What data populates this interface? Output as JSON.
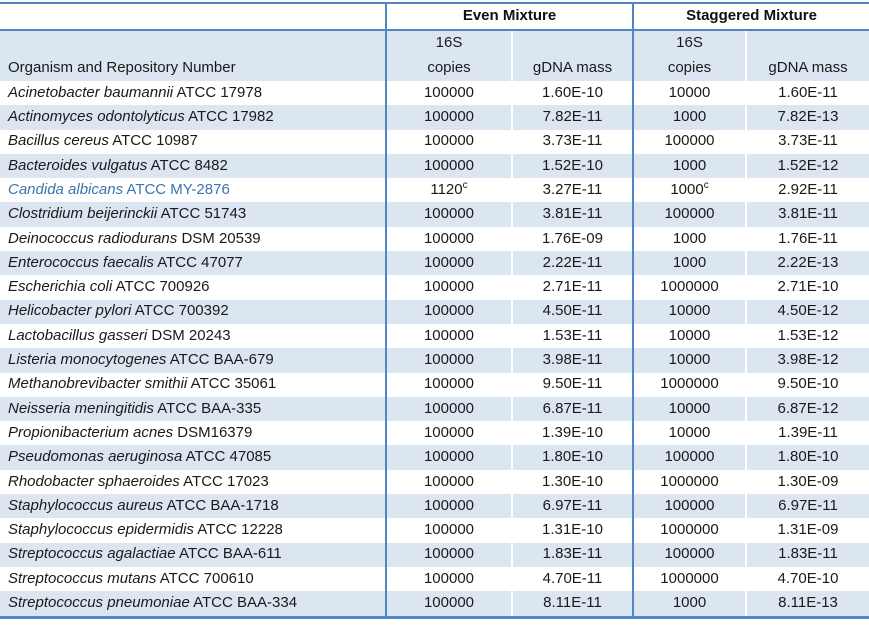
{
  "colors": {
    "section_border": "#4e87c4",
    "row_shade": "#dce6f1",
    "highlight_text": "#3c73b0",
    "text": "#1a1a1a"
  },
  "table": {
    "group_headers": {
      "even": "Even Mixture",
      "staggered": "Staggered Mixture"
    },
    "sub_headers": {
      "organism": "Organism and Repository Number",
      "copies_line1": "16S",
      "copies_line2": "copies",
      "gdna_mass": "gDNA mass"
    },
    "rows": [
      {
        "name": "Acinetobacter baumannii",
        "repo": "ATCC 17978",
        "even_copies": "100000",
        "even_sup": "",
        "even_mass": "1.60E-10",
        "stag_copies": "10000",
        "stag_sup": "",
        "stag_mass": "1.60E-11",
        "highlight": false
      },
      {
        "name": "Actinomyces odontolyticus",
        "repo": "ATCC 17982",
        "even_copies": "100000",
        "even_sup": "",
        "even_mass": "7.82E-11",
        "stag_copies": "1000",
        "stag_sup": "",
        "stag_mass": "7.82E-13",
        "highlight": false
      },
      {
        "name": "Bacillus cereus",
        "repo": "ATCC 10987",
        "even_copies": "100000",
        "even_sup": "",
        "even_mass": "3.73E-11",
        "stag_copies": "100000",
        "stag_sup": "",
        "stag_mass": "3.73E-11",
        "highlight": false
      },
      {
        "name": "Bacteroides vulgatus",
        "repo": "ATCC 8482",
        "even_copies": "100000",
        "even_sup": "",
        "even_mass": "1.52E-10",
        "stag_copies": "1000",
        "stag_sup": "",
        "stag_mass": "1.52E-12",
        "highlight": false
      },
      {
        "name": "Candida albicans",
        "repo": "ATCC MY-2876",
        "even_copies": "1120",
        "even_sup": "c",
        "even_mass": "3.27E-11",
        "stag_copies": "1000",
        "stag_sup": "c",
        "stag_mass": "2.92E-11",
        "highlight": true
      },
      {
        "name": "Clostridium beijerinckii",
        "repo": "ATCC 51743",
        "even_copies": "100000",
        "even_sup": "",
        "even_mass": "3.81E-11",
        "stag_copies": "100000",
        "stag_sup": "",
        "stag_mass": "3.81E-11",
        "highlight": false
      },
      {
        "name": "Deinococcus radiodurans",
        "repo": "DSM 20539",
        "even_copies": "100000",
        "even_sup": "",
        "even_mass": "1.76E-09",
        "stag_copies": "1000",
        "stag_sup": "",
        "stag_mass": "1.76E-11",
        "highlight": false
      },
      {
        "name": "Enterococcus faecalis",
        "repo": "ATCC 47077",
        "even_copies": "100000",
        "even_sup": "",
        "even_mass": "2.22E-11",
        "stag_copies": "1000",
        "stag_sup": "",
        "stag_mass": "2.22E-13",
        "highlight": false
      },
      {
        "name": "Escherichia coli",
        "repo": "ATCC 700926",
        "even_copies": "100000",
        "even_sup": "",
        "even_mass": "2.71E-11",
        "stag_copies": "1000000",
        "stag_sup": "",
        "stag_mass": "2.71E-10",
        "highlight": false
      },
      {
        "name": "Helicobacter pylori",
        "repo": "ATCC 700392",
        "even_copies": "100000",
        "even_sup": "",
        "even_mass": "4.50E-11",
        "stag_copies": "10000",
        "stag_sup": "",
        "stag_mass": "4.50E-12",
        "highlight": false
      },
      {
        "name": "Lactobacillus gasseri",
        "repo": "DSM 20243",
        "even_copies": "100000",
        "even_sup": "",
        "even_mass": "1.53E-11",
        "stag_copies": "10000",
        "stag_sup": "",
        "stag_mass": "1.53E-12",
        "highlight": false
      },
      {
        "name": "Listeria monocytogenes",
        "repo": "ATCC BAA-679",
        "even_copies": "100000",
        "even_sup": "",
        "even_mass": "3.98E-11",
        "stag_copies": "10000",
        "stag_sup": "",
        "stag_mass": "3.98E-12",
        "highlight": false
      },
      {
        "name": "Methanobrevibacter smithii",
        "repo": "ATCC 35061",
        "even_copies": "100000",
        "even_sup": "",
        "even_mass": "9.50E-11",
        "stag_copies": "1000000",
        "stag_sup": "",
        "stag_mass": "9.50E-10",
        "highlight": false
      },
      {
        "name": "Neisseria meningitidis",
        "repo": "ATCC BAA-335",
        "even_copies": "100000",
        "even_sup": "",
        "even_mass": "6.87E-11",
        "stag_copies": "10000",
        "stag_sup": "",
        "stag_mass": "6.87E-12",
        "highlight": false
      },
      {
        "name": "Propionibacterium acnes",
        "repo": "DSM16379",
        "even_copies": "100000",
        "even_sup": "",
        "even_mass": "1.39E-10",
        "stag_copies": "10000",
        "stag_sup": "",
        "stag_mass": "1.39E-11",
        "highlight": false
      },
      {
        "name": "Pseudomonas aeruginosa",
        "repo": "ATCC 47085",
        "even_copies": "100000",
        "even_sup": "",
        "even_mass": "1.80E-10",
        "stag_copies": "100000",
        "stag_sup": "",
        "stag_mass": "1.80E-10",
        "highlight": false
      },
      {
        "name": "Rhodobacter sphaeroides",
        "repo": "ATCC 17023",
        "even_copies": "100000",
        "even_sup": "",
        "even_mass": "1.30E-10",
        "stag_copies": "1000000",
        "stag_sup": "",
        "stag_mass": "1.30E-09",
        "highlight": false
      },
      {
        "name": "Staphylococcus aureus",
        "repo": "ATCC BAA-1718",
        "even_copies": "100000",
        "even_sup": "",
        "even_mass": "6.97E-11",
        "stag_copies": "100000",
        "stag_sup": "",
        "stag_mass": "6.97E-11",
        "highlight": false
      },
      {
        "name": "Staphylococcus epidermidis",
        "repo": "ATCC 12228",
        "even_copies": "100000",
        "even_sup": "",
        "even_mass": "1.31E-10",
        "stag_copies": "1000000",
        "stag_sup": "",
        "stag_mass": "1.31E-09",
        "highlight": false
      },
      {
        "name": "Streptococcus agalactiae",
        "repo": "ATCC BAA-611",
        "even_copies": "100000",
        "even_sup": "",
        "even_mass": "1.83E-11",
        "stag_copies": "100000",
        "stag_sup": "",
        "stag_mass": "1.83E-11",
        "highlight": false
      },
      {
        "name": "Streptococcus mutans",
        "repo": "ATCC 700610",
        "even_copies": "100000",
        "even_sup": "",
        "even_mass": "4.70E-11",
        "stag_copies": "1000000",
        "stag_sup": "",
        "stag_mass": "4.70E-10",
        "highlight": false
      },
      {
        "name": "Streptococcus pneumoniae",
        "repo": "ATCC BAA-334",
        "even_copies": "100000",
        "even_sup": "",
        "even_mass": "8.11E-11",
        "stag_copies": "1000",
        "stag_sup": "",
        "stag_mass": "8.11E-13",
        "highlight": false
      }
    ]
  }
}
